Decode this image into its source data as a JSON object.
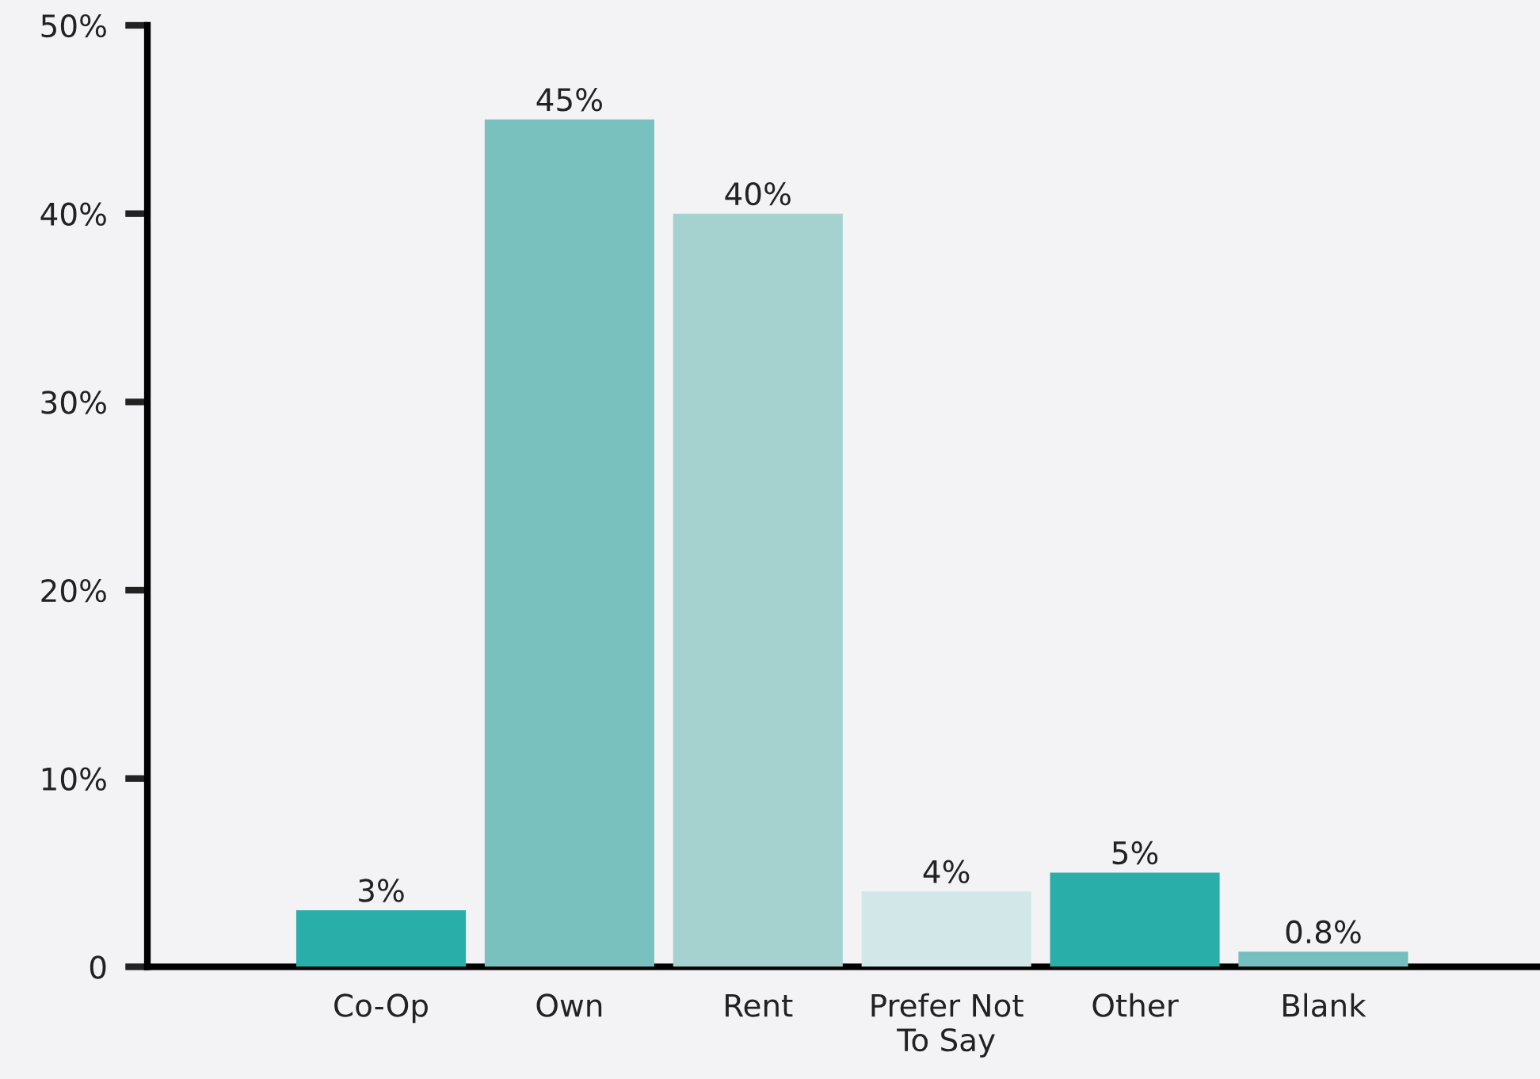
{
  "chart_data": {
    "type": "bar",
    "categories": [
      "Co-Op",
      "Own",
      "Rent",
      "Prefer Not To Say",
      "Other",
      "Blank"
    ],
    "values": [
      3,
      45,
      40,
      4,
      5,
      0.8
    ],
    "value_labels": [
      "3%",
      "45%",
      "40%",
      "4%",
      "5%",
      "0.8%"
    ],
    "colors": [
      "#2aaeaa",
      "#79c1be",
      "#a5d1cf",
      "#d1e7e8",
      "#2aaeaa",
      "#74bfbd"
    ],
    "ylim": [
      0,
      50
    ],
    "yticks": [
      {
        "value": 0,
        "label": "0"
      },
      {
        "value": 10,
        "label": "10%"
      },
      {
        "value": 20,
        "label": "20%"
      },
      {
        "value": 30,
        "label": "30%"
      },
      {
        "value": 40,
        "label": "40%"
      },
      {
        "value": 50,
        "label": "50%"
      }
    ],
    "grid": false,
    "legend": false
  }
}
